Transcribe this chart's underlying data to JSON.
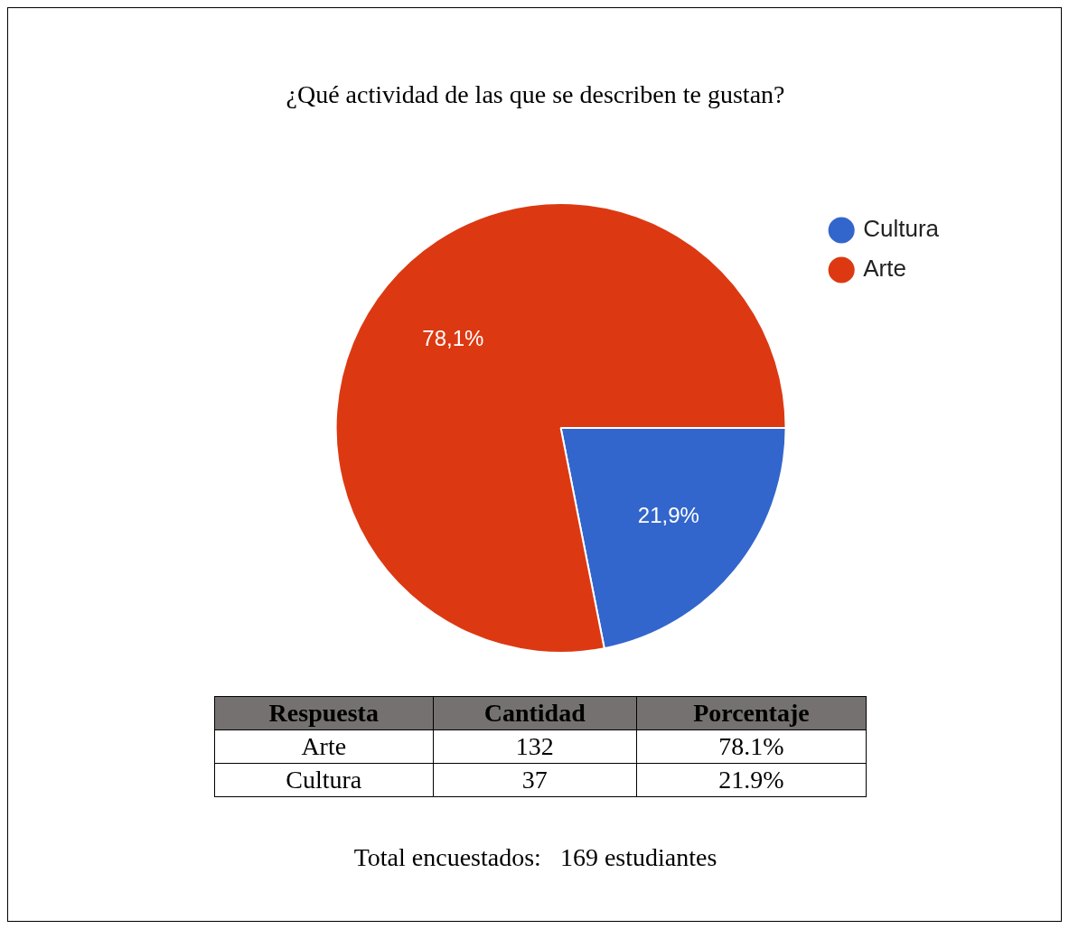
{
  "chart_data": {
    "type": "pie",
    "title": "¿Qué actividad de las que se describen te gustan?",
    "categories": [
      "Cultura",
      "Arte"
    ],
    "values": [
      21.9,
      78.1
    ],
    "colors": [
      "#3366cc",
      "#dc3912"
    ],
    "value_labels": [
      "21,9%",
      "78,1%"
    ],
    "legend": "top right",
    "annotations": [
      "Respuesta",
      "Cantidad",
      "Porcentaje",
      "37",
      "21.9%",
      "132",
      "78.1%",
      "Total encuestados:   169 estudiantes"
    ]
  }
}
